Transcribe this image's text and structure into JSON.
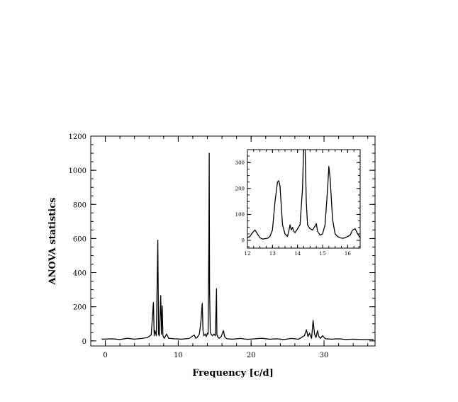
{
  "chart_data": [
    {
      "type": "line",
      "title": "",
      "xlabel": "Frequency [c/d]",
      "ylabel": "ANOVA statistics",
      "xlim": [
        -2,
        37
      ],
      "ylim": [
        -30,
        1200
      ],
      "xticks": [
        0,
        10,
        20,
        30
      ],
      "yticks": [
        0,
        200,
        400,
        600,
        800,
        1000,
        1200
      ],
      "grid": false,
      "legend": "none",
      "series": [
        {
          "x": [
            -0.5,
            1,
            2,
            3,
            4,
            5,
            5.8,
            6.3,
            6.6,
            6.7,
            6.8,
            7.0,
            7.2,
            7.3,
            7.4,
            7.6,
            7.7,
            7.8,
            7.9,
            8.1,
            8.4,
            8.7,
            9.5,
            10.5,
            11.5,
            12.2,
            12.4,
            12.6,
            12.9,
            13.1,
            13.3,
            13.4,
            13.5,
            13.7,
            13.85,
            14.0,
            14.1,
            14.2,
            14.25,
            14.3,
            14.4,
            14.5,
            14.7,
            14.9,
            15.1,
            15.25,
            15.3,
            15.4,
            15.6,
            15.9,
            16.2,
            16.4,
            16.7,
            17.5,
            18.5,
            19.5,
            20.5,
            21.5,
            22.5,
            23.5,
            24.5,
            25.5,
            26.5,
            27.3,
            27.6,
            27.8,
            28.0,
            28.3,
            28.5,
            28.7,
            28.9,
            29.1,
            29.3,
            29.5,
            29.8,
            30.2,
            31,
            32,
            33,
            34,
            35,
            36,
            36.8
          ],
          "y": [
            10,
            12,
            8,
            15,
            10,
            14,
            20,
            35,
            225,
            30,
            60,
            30,
            590,
            40,
            30,
            265,
            40,
            205,
            30,
            15,
            40,
            15,
            12,
            10,
            14,
            35,
            15,
            20,
            40,
            110,
            220,
            60,
            30,
            40,
            25,
            45,
            40,
            570,
            1100,
            300,
            50,
            40,
            30,
            40,
            30,
            305,
            40,
            25,
            15,
            25,
            60,
            20,
            12,
            10,
            14,
            9,
            12,
            15,
            10,
            12,
            8,
            14,
            10,
            30,
            65,
            25,
            45,
            15,
            120,
            40,
            20,
            60,
            25,
            15,
            30,
            12,
            10,
            12,
            8,
            10,
            8,
            8,
            8
          ]
        }
      ]
    },
    {
      "type": "line",
      "title": "",
      "xlabel": "",
      "ylabel": "",
      "xlim": [
        12,
        16.5
      ],
      "ylim": [
        -30,
        350
      ],
      "xticks": [
        12,
        13,
        14,
        15,
        16
      ],
      "yticks": [
        0,
        100,
        200,
        300
      ],
      "grid": false,
      "legend": "none",
      "series": [
        {
          "x": [
            12.0,
            12.1,
            12.2,
            12.3,
            12.4,
            12.5,
            12.6,
            12.8,
            12.9,
            13.0,
            13.1,
            13.2,
            13.25,
            13.3,
            13.4,
            13.5,
            13.6,
            13.65,
            13.7,
            13.75,
            13.8,
            13.85,
            13.9,
            14.0,
            14.1,
            14.2,
            14.25,
            14.3,
            14.35,
            14.4,
            14.5,
            14.6,
            14.7,
            14.75,
            14.8,
            14.9,
            15.0,
            15.1,
            15.2,
            15.25,
            15.3,
            15.4,
            15.5,
            15.6,
            15.7,
            15.8,
            15.9,
            16.0,
            16.1,
            16.2,
            16.3,
            16.4,
            16.5
          ],
          "y": [
            10,
            15,
            30,
            40,
            25,
            10,
            5,
            8,
            15,
            40,
            150,
            225,
            230,
            210,
            60,
            25,
            15,
            35,
            60,
            40,
            50,
            35,
            30,
            45,
            60,
            200,
            380,
            360,
            150,
            60,
            45,
            40,
            55,
            65,
            35,
            20,
            25,
            60,
            200,
            285,
            240,
            80,
            25,
            15,
            10,
            8,
            10,
            15,
            20,
            40,
            45,
            25,
            10
          ]
        }
      ]
    }
  ]
}
